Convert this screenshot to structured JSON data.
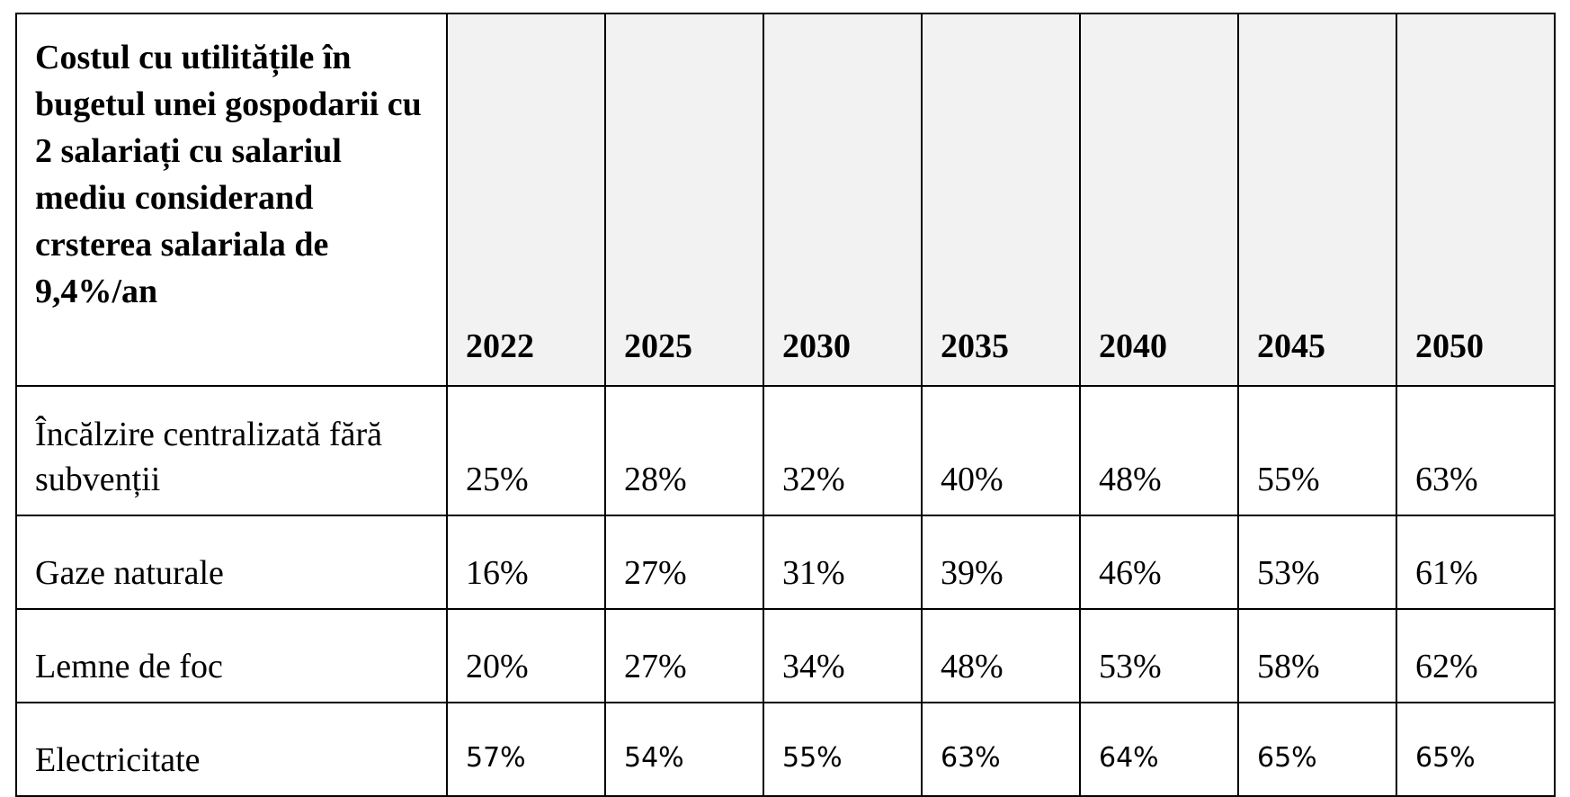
{
  "table": {
    "corner_header": "Costul cu utilitățile în bugetul unei gospodarii cu 2 salariați cu salariul mediu considerand crsterea salariala de 9,4%/an",
    "years": [
      "2022",
      "2025",
      "2030",
      "2035",
      "2040",
      "2045",
      "2050"
    ],
    "header_background": "#f2f2f2",
    "rows": [
      {
        "label": "Încălzire centralizată fără subvenții",
        "values": [
          "25%",
          "28%",
          "32%",
          "40%",
          "48%",
          "55%",
          "63%"
        ]
      },
      {
        "label": "Gaze naturale",
        "values": [
          "16%",
          "27%",
          "31%",
          "39%",
          "46%",
          "53%",
          "61%"
        ]
      },
      {
        "label": "Lemne de foc",
        "values": [
          "20%",
          "27%",
          "34%",
          "48%",
          "53%",
          "58%",
          "62%"
        ]
      },
      {
        "label": "Electricitate",
        "values": [
          "57%",
          "54%",
          "55%",
          "63%",
          "64%",
          "65%",
          "65%"
        ]
      }
    ]
  }
}
